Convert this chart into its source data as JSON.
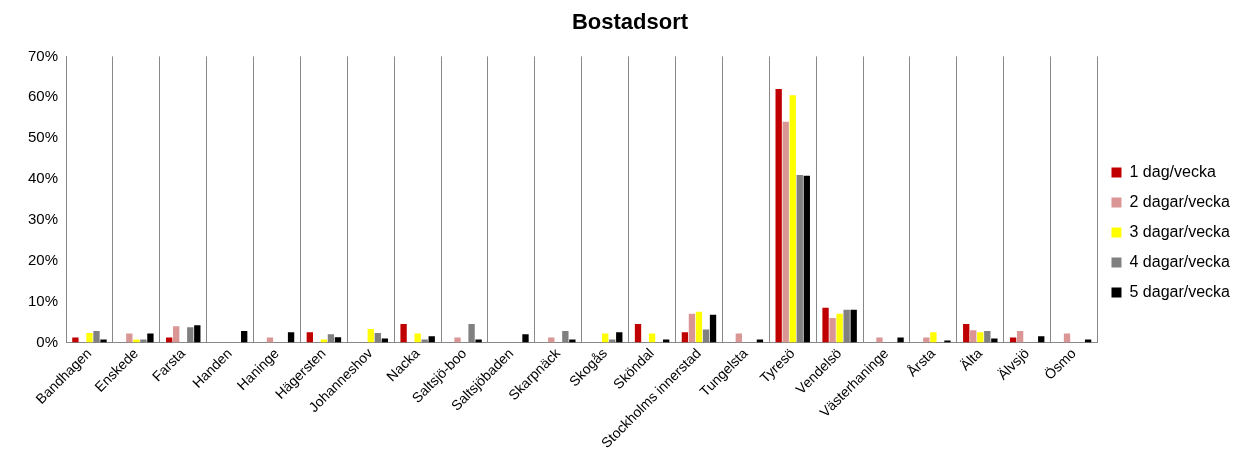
{
  "chart_data": {
    "type": "bar",
    "title": "Bostadsort",
    "categories": [
      "Bandhagen",
      "Enskede",
      "Farsta",
      "Handen",
      "Haninge",
      "Hägersten",
      "Johanneshov",
      "Nacka",
      "Saltsjö-boo",
      "Saltsjöbaden",
      "Skarpnäck",
      "Skogås",
      "Sköndal",
      "Stockholms innerstad",
      "Tungelsta",
      "Tyresö",
      "Vendelsö",
      "Västerhaninge",
      "Årsta",
      "Älta",
      "Älvsjö",
      "Ösmo"
    ],
    "series": [
      {
        "name": "1 dag/vecka",
        "color": "#c00000",
        "values": [
          1.2,
          0,
          1.2,
          0,
          0,
          2.5,
          0,
          4.5,
          0,
          0,
          0,
          0,
          4.5,
          2.5,
          0,
          62,
          8.5,
          0,
          0,
          4.5,
          1.2,
          0
        ]
      },
      {
        "name": "2 dagar/vecka",
        "color": "#d99694",
        "values": [
          0,
          2.2,
          4,
          0,
          1.2,
          0,
          0,
          0,
          1.2,
          0,
          1.2,
          0,
          0,
          7,
          2.2,
          54,
          6,
          1.2,
          1.2,
          3,
          2.8,
          2.2
        ]
      },
      {
        "name": "3 dagar/vecka",
        "color": "#ffff00",
        "values": [
          2.3,
          0.7,
          0,
          0,
          0,
          0.7,
          3.3,
          2.2,
          0,
          0,
          0,
          2.2,
          2.2,
          7.5,
          0,
          60.5,
          7,
          0,
          2.5,
          2.5,
          0,
          0
        ]
      },
      {
        "name": "4 dagar/vecka",
        "color": "#808080",
        "values": [
          2.8,
          0.7,
          3.7,
          0,
          0,
          2,
          2.3,
          0.7,
          4.5,
          0,
          2.8,
          0.7,
          0,
          3.2,
          0,
          41,
          8,
          0,
          0,
          2.8,
          0,
          0
        ]
      },
      {
        "name": "5 dagar/vecka",
        "color": "#000000",
        "values": [
          0.7,
          2.2,
          4.2,
          2.8,
          2.5,
          1.3,
          1,
          1.5,
          0.7,
          2,
          0.7,
          2.5,
          0.7,
          6.8,
          0.7,
          40.8,
          8,
          1.2,
          0.5,
          1,
          1.5,
          0.7
        ]
      }
    ],
    "ylim": [
      0,
      70
    ],
    "yticks": [
      {
        "value": 0,
        "label": "0%"
      },
      {
        "value": 10,
        "label": "10%"
      },
      {
        "value": 20,
        "label": "20%"
      },
      {
        "value": 30,
        "label": "30%"
      },
      {
        "value": 40,
        "label": "40%"
      },
      {
        "value": 50,
        "label": "50%"
      },
      {
        "value": 60,
        "label": "60%"
      },
      {
        "value": 70,
        "label": "70%"
      }
    ],
    "grid": "x",
    "legend": "right"
  }
}
